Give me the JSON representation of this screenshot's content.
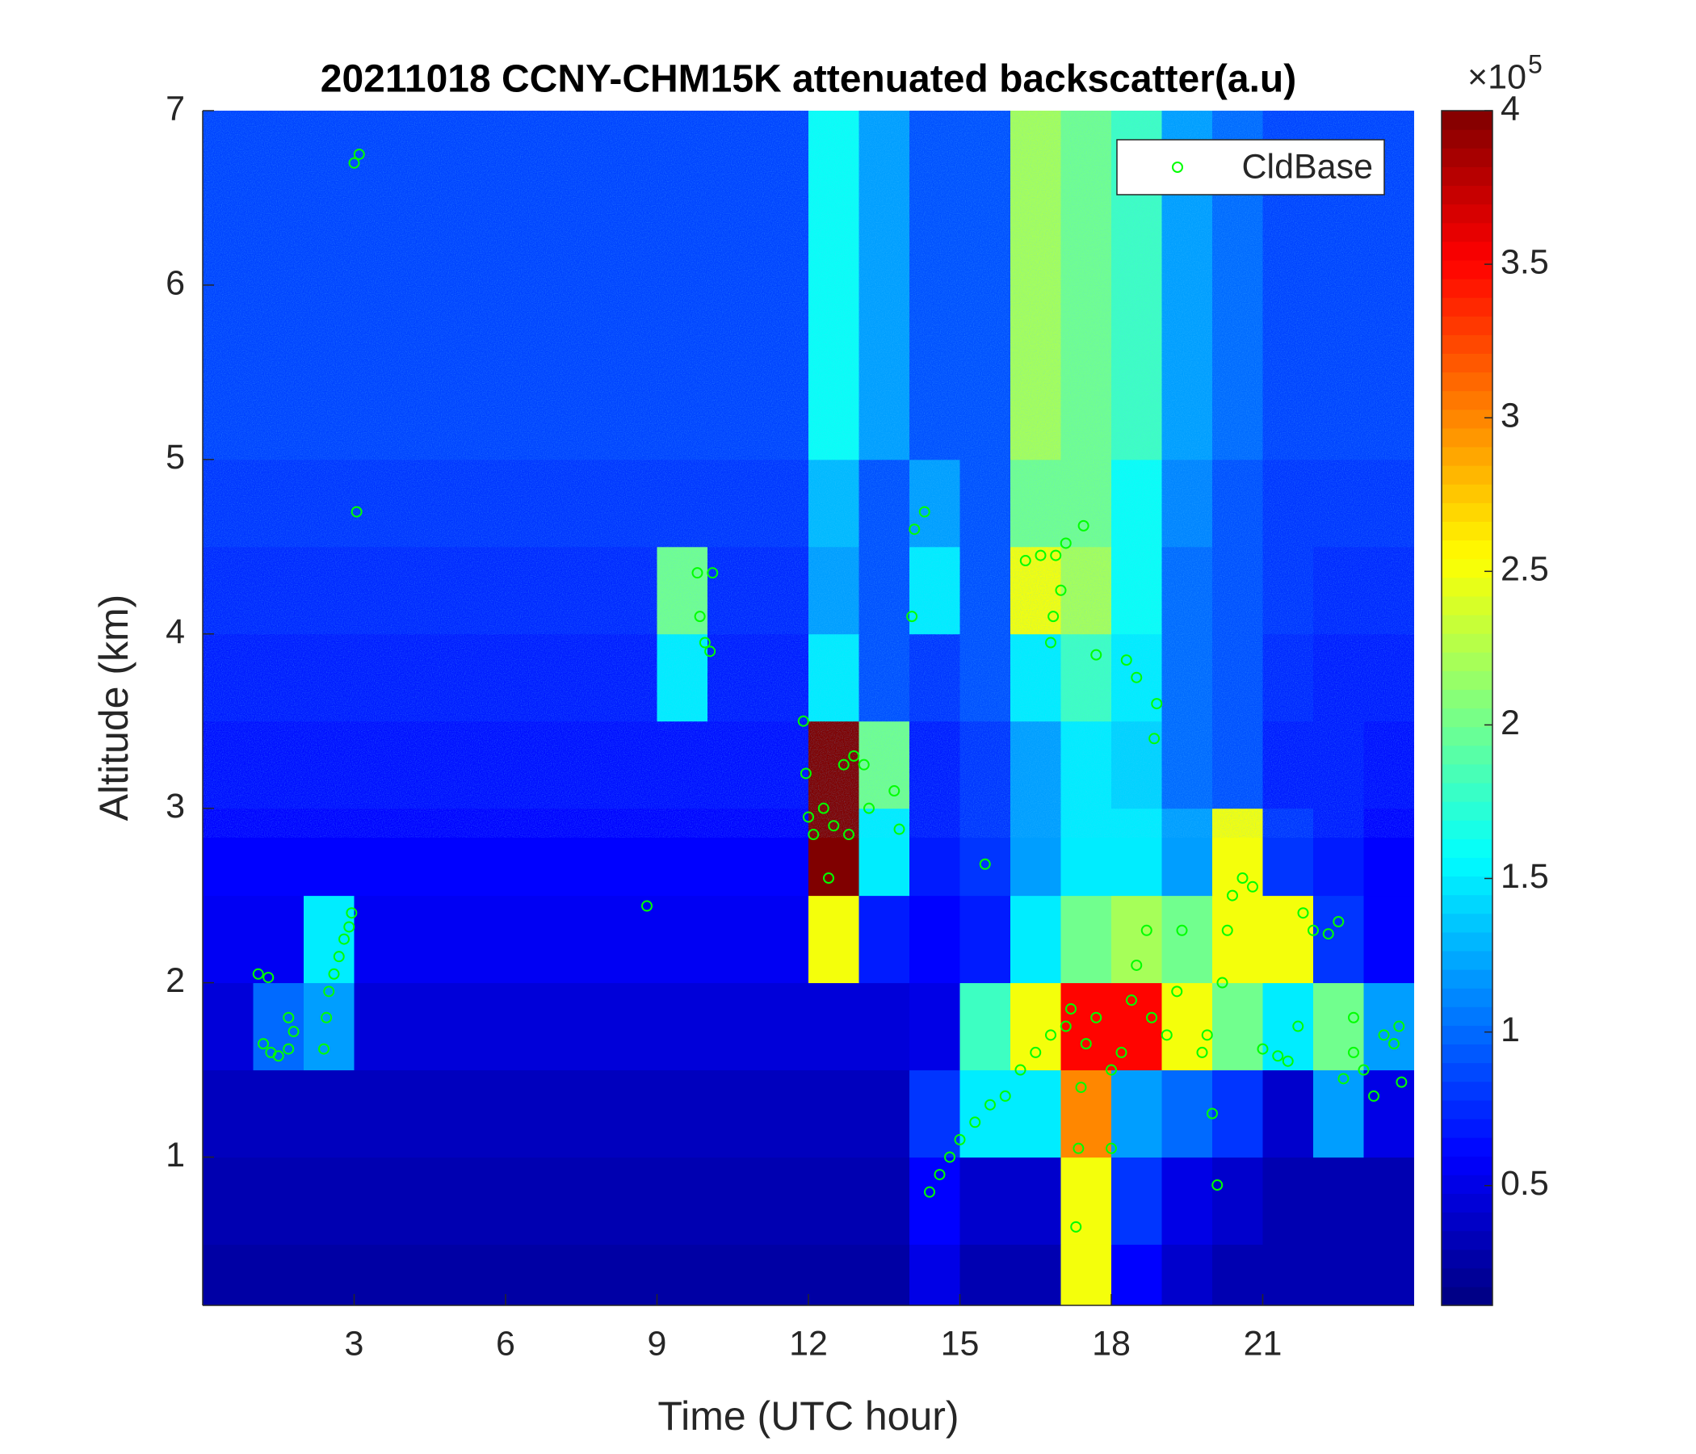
{
  "chart_data": {
    "type": "heatmap",
    "title": "20211018 CCNY-CHM15K attenuated backscatter(a.u)",
    "xlabel": "Time (UTC hour)",
    "ylabel": "Altitude (km)",
    "xlim": [
      0,
      24
    ],
    "ylim": [
      0.15,
      7
    ],
    "xticks": [
      3,
      6,
      9,
      12,
      15,
      18,
      21
    ],
    "yticks": [
      1,
      2,
      3,
      4,
      5,
      6,
      7
    ],
    "colormap": "jet",
    "clim": [
      0.11,
      4
    ],
    "cticks": [
      0.5,
      1,
      1.5,
      2,
      2.5,
      3,
      3.5,
      4
    ],
    "cscale_base": "×10",
    "cscale_power": "5",
    "x_edges": [
      0,
      1,
      2,
      3,
      4,
      5,
      6,
      7,
      8,
      9,
      10,
      11,
      12,
      13,
      14,
      15,
      16,
      17,
      18,
      19,
      20,
      21,
      22,
      23,
      24
    ],
    "y_edges": [
      0,
      0.5,
      1,
      1.5,
      2,
      2.5,
      3,
      3.5,
      4,
      4.5,
      5,
      5.5,
      6,
      6.5,
      7
    ],
    "z": [
      [
        0.25,
        0.25,
        0.25,
        0.25,
        0.25,
        0.25,
        0.25,
        0.25,
        0.25,
        0.25,
        0.25,
        0.25,
        0.25,
        0.25,
        0.5,
        0.3,
        0.3,
        2.5,
        0.6,
        0.4,
        0.3,
        0.3,
        0.3,
        0.3
      ],
      [
        0.3,
        0.3,
        0.3,
        0.3,
        0.3,
        0.3,
        0.3,
        0.3,
        0.3,
        0.3,
        0.3,
        0.3,
        0.3,
        0.3,
        0.6,
        0.4,
        0.4,
        2.5,
        0.8,
        0.5,
        0.4,
        0.3,
        0.3,
        0.3
      ],
      [
        0.35,
        0.35,
        0.35,
        0.35,
        0.35,
        0.35,
        0.35,
        0.35,
        0.35,
        0.35,
        0.35,
        0.35,
        0.35,
        0.35,
        0.8,
        1.5,
        1.5,
        3,
        1.2,
        1,
        0.8,
        0.4,
        1.2,
        0.5
      ],
      [
        0.45,
        1,
        1.2,
        0.45,
        0.45,
        0.45,
        0.45,
        0.45,
        0.45,
        0.45,
        0.45,
        0.45,
        0.45,
        0.45,
        0.5,
        1.8,
        2.5,
        3.5,
        3.5,
        2.5,
        2,
        1.5,
        2,
        1.2
      ],
      [
        0.55,
        0.55,
        1.5,
        0.55,
        0.55,
        0.55,
        0.55,
        0.55,
        0.55,
        0.55,
        0.55,
        0.55,
        2.5,
        0.7,
        0.6,
        0.7,
        1.5,
        2,
        2.2,
        2,
        2.5,
        2.5,
        0.8,
        0.6
      ],
      [
        0.6,
        0.6,
        0.6,
        0.6,
        0.6,
        0.6,
        0.6,
        0.6,
        0.6,
        0.6,
        0.6,
        0.6,
        4,
        1.5,
        0.7,
        0.8,
        1.2,
        1.5,
        1.5,
        1.2,
        2.5,
        0.8,
        0.7,
        0.6
      ],
      [
        0.65,
        0.65,
        0.65,
        0.65,
        0.65,
        0.65,
        0.65,
        0.65,
        0.65,
        0.65,
        0.65,
        0.65,
        4,
        2,
        0.7,
        0.8,
        1.2,
        1.5,
        1.4,
        1,
        0.9,
        0.7,
        0.7,
        0.65
      ],
      [
        0.7,
        0.7,
        0.7,
        0.7,
        0.7,
        0.7,
        0.7,
        0.7,
        0.7,
        1.5,
        0.7,
        0.7,
        1.5,
        0.9,
        0.8,
        0.9,
        1.5,
        1.8,
        1.5,
        1,
        0.9,
        0.75,
        0.7,
        0.7
      ],
      [
        0.75,
        0.75,
        0.75,
        0.75,
        0.75,
        0.75,
        0.75,
        0.75,
        0.75,
        2,
        0.75,
        0.75,
        1.2,
        0.9,
        1.5,
        0.9,
        2.5,
        2.2,
        1.6,
        1,
        0.9,
        0.8,
        0.75,
        0.75
      ],
      [
        0.8,
        0.8,
        0.8,
        0.8,
        0.8,
        0.8,
        0.8,
        0.8,
        0.8,
        0.8,
        0.8,
        0.8,
        1.3,
        0.9,
        1.2,
        0.9,
        2,
        2,
        1.6,
        1.1,
        0.9,
        0.8,
        0.8,
        0.8
      ],
      [
        0.85,
        0.85,
        0.85,
        0.85,
        0.85,
        0.85,
        0.85,
        0.85,
        0.85,
        0.85,
        0.85,
        0.85,
        1.6,
        1.2,
        0.9,
        0.9,
        2.2,
        2,
        1.8,
        1.2,
        1,
        0.85,
        0.85,
        0.85
      ],
      [
        0.85,
        0.85,
        0.85,
        0.85,
        0.85,
        0.85,
        0.85,
        0.85,
        0.85,
        0.85,
        0.85,
        0.85,
        1.6,
        1.2,
        0.9,
        0.9,
        2.2,
        2,
        1.8,
        1.2,
        1,
        0.85,
        0.85,
        0.85
      ],
      [
        0.85,
        0.85,
        0.85,
        0.85,
        0.85,
        0.85,
        0.85,
        0.85,
        0.85,
        0.85,
        0.85,
        0.85,
        1.6,
        1.2,
        0.9,
        0.9,
        2.2,
        2,
        1.8,
        1.2,
        1,
        0.85,
        0.85,
        0.85
      ],
      [
        0.85,
        0.85,
        0.85,
        0.85,
        0.85,
        0.85,
        0.85,
        0.85,
        0.85,
        0.85,
        0.85,
        0.85,
        1.6,
        1.2,
        0.9,
        0.9,
        2.2,
        2,
        1.8,
        1.2,
        1,
        0.85,
        0.85,
        0.85
      ]
    ],
    "legend": "upper right",
    "series": [
      {
        "name": "CldBase",
        "type": "scatter",
        "color": "#00ff00",
        "x": [
          1.1,
          1.3,
          1.2,
          1.35,
          1.5,
          1.7,
          1.8,
          1.7,
          2.4,
          2.45,
          2.5,
          2.6,
          2.7,
          2.8,
          2.9,
          2.95,
          3.0,
          3.1,
          3.05,
          8.8,
          9.8,
          9.85,
          9.95,
          10.05,
          10.1,
          11.9,
          11.95,
          12.0,
          12.1,
          12.3,
          12.5,
          12.7,
          12.9,
          13.1,
          13.2,
          12.4,
          12.8,
          13.7,
          13.8,
          14.1,
          14.3,
          14.05,
          14.4,
          14.6,
          14.8,
          15.0,
          15.3,
          15.6,
          15.9,
          16.2,
          16.5,
          16.8,
          17.1,
          17.2,
          15.5,
          16.3,
          16.6,
          16.9,
          17.1,
          17.0,
          16.85,
          16.8,
          17.45,
          17.7,
          17.4,
          17.35,
          17.3,
          17.5,
          17.7,
          18.0,
          18.0,
          18.2,
          18.4,
          18.5,
          18.7,
          18.8,
          18.9,
          18.85,
          18.3,
          18.5,
          19.1,
          19.3,
          19.4,
          19.8,
          19.9,
          20.0,
          20.1,
          20.2,
          20.3,
          20.4,
          20.6,
          20.8,
          21.0,
          21.3,
          21.5,
          21.7,
          21.8,
          22.0,
          22.3,
          22.5,
          22.6,
          22.8,
          23.0,
          23.2,
          23.4,
          23.6,
          23.7,
          23.75,
          22.8
        ],
        "y": [
          2.05,
          2.03,
          1.65,
          1.6,
          1.58,
          1.8,
          1.72,
          1.62,
          1.62,
          1.8,
          1.95,
          2.05,
          2.15,
          2.25,
          2.32,
          2.4,
          6.7,
          6.75,
          4.7,
          2.44,
          4.35,
          4.1,
          3.95,
          3.9,
          4.35,
          3.5,
          3.2,
          2.95,
          2.85,
          3.0,
          2.9,
          3.25,
          3.3,
          3.25,
          3.0,
          2.6,
          2.85,
          3.1,
          2.88,
          4.6,
          4.7,
          4.1,
          0.8,
          0.9,
          1.0,
          1.1,
          1.2,
          1.3,
          1.35,
          1.5,
          1.6,
          1.7,
          1.75,
          1.85,
          2.68,
          4.42,
          4.45,
          4.45,
          4.52,
          4.25,
          4.1,
          3.95,
          4.62,
          3.88,
          1.4,
          1.05,
          0.6,
          1.65,
          1.8,
          1.5,
          1.05,
          1.6,
          1.9,
          2.1,
          2.3,
          1.8,
          3.6,
          3.4,
          3.85,
          3.75,
          1.7,
          1.95,
          2.3,
          1.6,
          1.7,
          1.25,
          0.84,
          2.0,
          2.3,
          2.5,
          2.6,
          2.55,
          1.62,
          1.58,
          1.55,
          1.75,
          2.4,
          2.3,
          2.28,
          2.35,
          1.45,
          1.6,
          1.5,
          1.35,
          1.7,
          1.65,
          1.75,
          1.43,
          1.8
        ]
      }
    ]
  }
}
